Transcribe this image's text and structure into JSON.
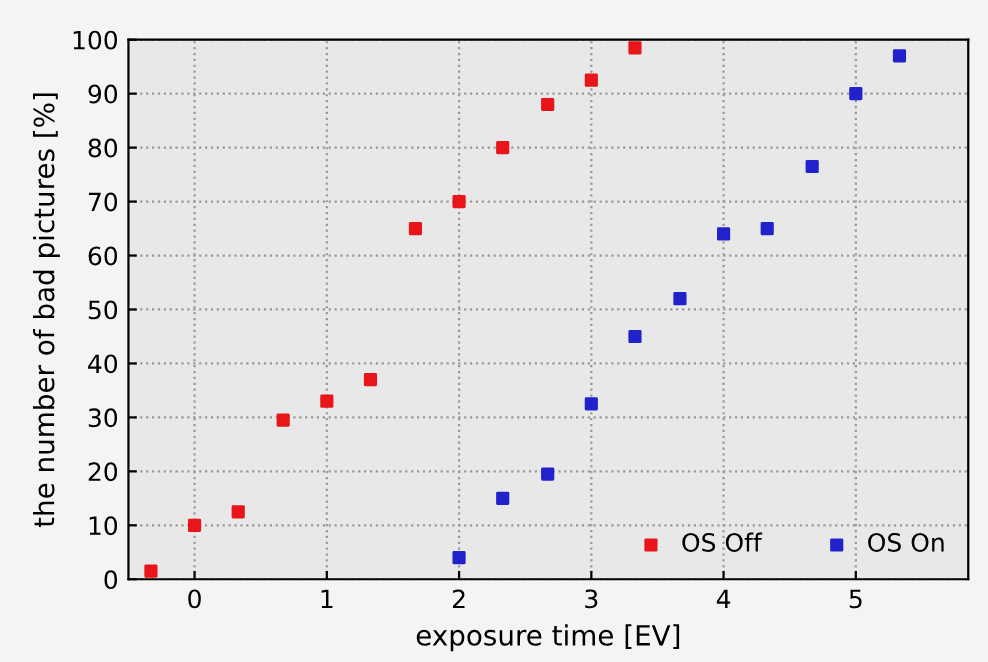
{
  "chart_data": {
    "type": "scatter",
    "xlabel": "exposure time [EV]",
    "ylabel": "the number of bad pictures [%]",
    "series": [
      {
        "name": "OS Off",
        "color": "#e8151a",
        "x": [
          -0.33,
          0,
          0.33,
          0.67,
          1,
          1.33,
          1.67,
          2,
          2.33,
          2.67,
          3,
          3.33
        ],
        "values": [
          1.5,
          10,
          12.5,
          29.5,
          33,
          37,
          65,
          70,
          80,
          88,
          92.5,
          98.5
        ]
      },
      {
        "name": "OS On",
        "color": "#2222cc",
        "x": [
          2,
          2.33,
          2.67,
          3,
          3.33,
          3.67,
          4,
          4.33,
          4.67,
          5,
          5.33
        ],
        "values": [
          4,
          15,
          19.5,
          32.5,
          45,
          52,
          64,
          65,
          76.5,
          90,
          97
        ]
      }
    ],
    "xlim": [
      -0.5,
      5.85
    ],
    "xticks": [
      0,
      1,
      2,
      3,
      4,
      5
    ],
    "ylim": [
      0,
      100
    ],
    "yticks": [
      0,
      10,
      20,
      30,
      40,
      50,
      60,
      70,
      80,
      90,
      100
    ],
    "grid": true,
    "legend": "bottom right",
    "marker": "square"
  }
}
